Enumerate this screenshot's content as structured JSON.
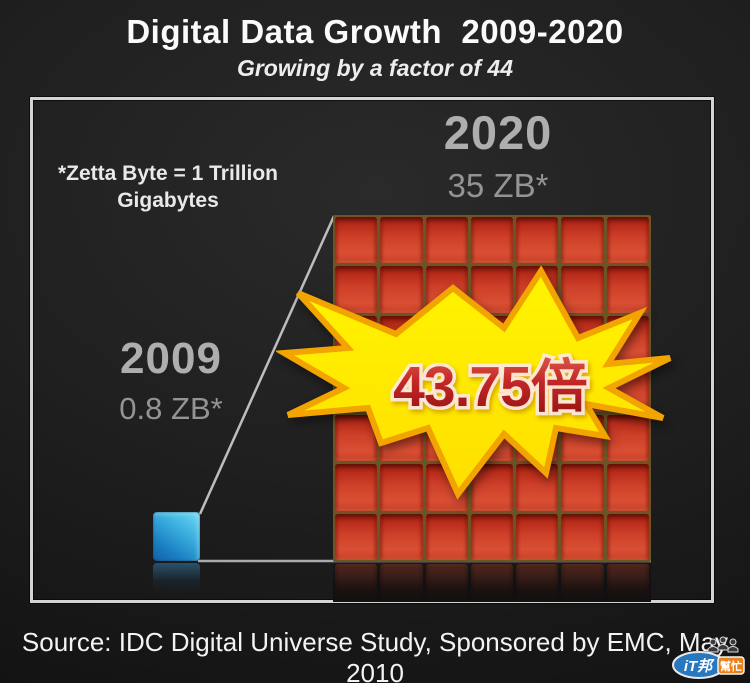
{
  "title": "Digital Data Growth  2009-2020",
  "subtitle": "Growing by a factor of 44",
  "note": {
    "line1": "*Zetta Byte = 1 Trillion",
    "line2": "Gigabytes"
  },
  "source": "Source: IDC Digital Universe Study, Sponsored by EMC, May 2010",
  "watermark": {
    "part1": "iT邦",
    "part2": "幫忙"
  },
  "colors": {
    "unit_2009": "#2f9fd4",
    "unit_2020": "#ce4029",
    "burst_fill": "#ffee00",
    "burst_border": "#f2a400",
    "burst_text": "#b31b1b",
    "background": "#1f1f1f",
    "frame_border": "#d4d4d4"
  },
  "chart_data": {
    "type": "pictorial-unit-comparison",
    "title": "Digital Data Growth 2009-2020",
    "subtitle": "Growing by a factor of 44",
    "categories": [
      "2009",
      "2020"
    ],
    "series": [
      {
        "year": "2009",
        "value_zb": 0.8,
        "label": "0.8 ZB*",
        "units_shown": 1,
        "unit_color": "#2f9fd4"
      },
      {
        "year": "2020",
        "value_zb": 35,
        "label": "35 ZB*",
        "units_shown": 49,
        "grid": {
          "rows": 7,
          "cols": 7
        },
        "unit_color": "#ce4029"
      }
    ],
    "growth_factor": 43.75,
    "growth_factor_label": "43.75倍",
    "unit_note": "*Zetta Byte = 1 Trillion Gigabytes",
    "source": "Source: IDC Digital Universe Study, Sponsored by EMC, May 2010",
    "legend": "none",
    "grid_lines": "off"
  }
}
